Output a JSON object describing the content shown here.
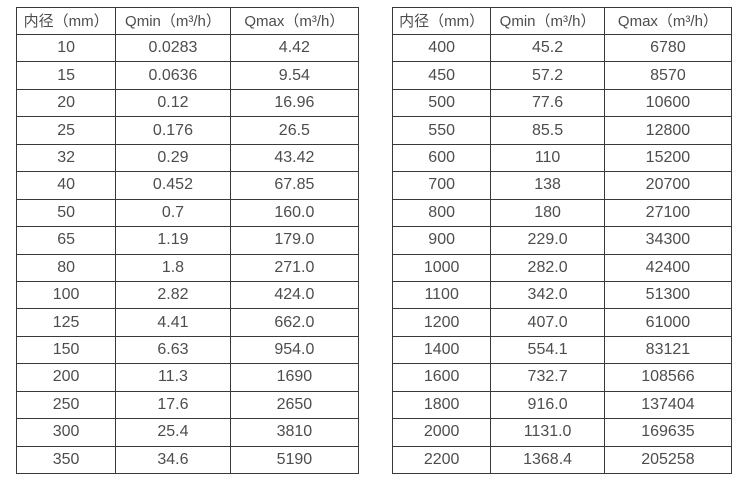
{
  "colors": {
    "background": "#ffffff",
    "border": "#3a3a3a",
    "text": "#4d4d4d"
  },
  "chart_data": [
    {
      "type": "table",
      "title": "",
      "headers": [
        "内径（mm）",
        "Qmin（m³/h）",
        "Qmax（m³/h）"
      ],
      "rows": [
        [
          "10",
          "0.0283",
          "4.42"
        ],
        [
          "15",
          "0.0636",
          "9.54"
        ],
        [
          "20",
          "0.12",
          "16.96"
        ],
        [
          "25",
          "0.176",
          "26.5"
        ],
        [
          "32",
          "0.29",
          "43.42"
        ],
        [
          "40",
          "0.452",
          "67.85"
        ],
        [
          "50",
          "0.7",
          "160.0"
        ],
        [
          "65",
          "1.19",
          "179.0"
        ],
        [
          "80",
          "1.8",
          "271.0"
        ],
        [
          "100",
          "2.82",
          "424.0"
        ],
        [
          "125",
          "4.41",
          "662.0"
        ],
        [
          "150",
          "6.63",
          "954.0"
        ],
        [
          "200",
          "11.3",
          "1690"
        ],
        [
          "250",
          "17.6",
          "2650"
        ],
        [
          "300",
          "25.4",
          "3810"
        ],
        [
          "350",
          "34.6",
          "5190"
        ]
      ]
    },
    {
      "type": "table",
      "title": "",
      "headers": [
        "内径（mm）",
        "Qmin（m³/h）",
        "Qmax（m³/h）"
      ],
      "rows": [
        [
          "400",
          "45.2",
          "6780"
        ],
        [
          "450",
          "57.2",
          "8570"
        ],
        [
          "500",
          "77.6",
          "10600"
        ],
        [
          "550",
          "85.5",
          "12800"
        ],
        [
          "600",
          "110",
          "15200"
        ],
        [
          "700",
          "138",
          "20700"
        ],
        [
          "800",
          "180",
          "27100"
        ],
        [
          "900",
          "229.0",
          "34300"
        ],
        [
          "1000",
          "282.0",
          "42400"
        ],
        [
          "1100",
          "342.0",
          "51300"
        ],
        [
          "1200",
          "407.0",
          "61000"
        ],
        [
          "1400",
          "554.1",
          "83121"
        ],
        [
          "1600",
          "732.7",
          "108566"
        ],
        [
          "1800",
          "916.0",
          "137404"
        ],
        [
          "2000",
          "1131.0",
          "169635"
        ],
        [
          "2200",
          "1368.4",
          "205258"
        ]
      ]
    }
  ]
}
